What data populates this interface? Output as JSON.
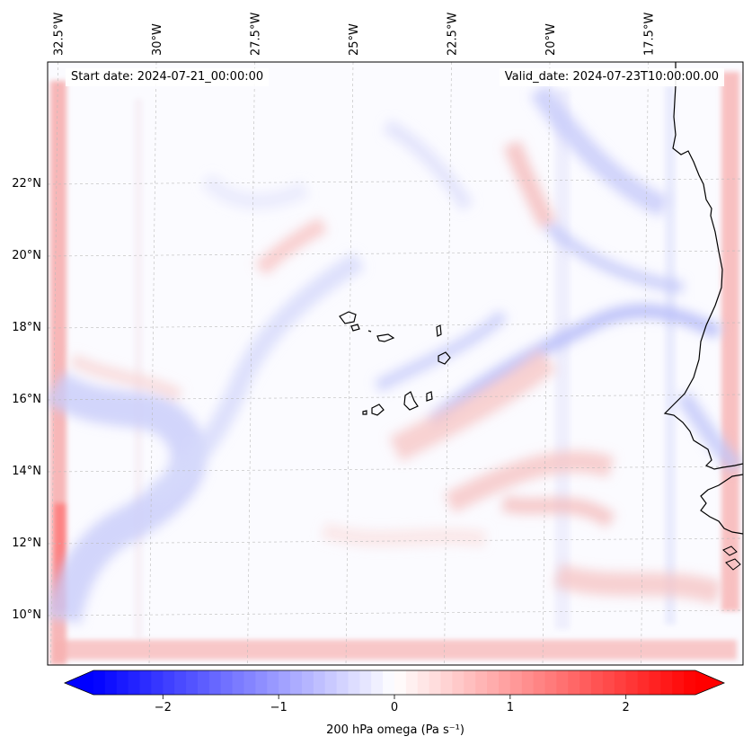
{
  "start_date": "Start date: 2024-07-21_00:00:00",
  "valid_date": "Valid_date: 2024-07-23T10:00:00.00",
  "lon_labels": [
    {
      "label": "32.5°W",
      "lon": -32.5
    },
    {
      "label": "30°W",
      "lon": -30.0
    },
    {
      "label": "27.5°W",
      "lon": -27.5
    },
    {
      "label": "25°W",
      "lon": -25.0
    },
    {
      "label": "22.5°W",
      "lon": -22.5
    },
    {
      "label": "20°W",
      "lon": -20.0
    },
    {
      "label": "17.5°W",
      "lon": -17.5
    }
  ],
  "lat_labels": [
    {
      "label": "22°N",
      "lat": 22
    },
    {
      "label": "20°N",
      "lat": 20
    },
    {
      "label": "18°N",
      "lat": 18
    },
    {
      "label": "16°N",
      "lat": 16
    },
    {
      "label": "14°N",
      "lat": 14
    },
    {
      "label": "12°N",
      "lat": 12
    },
    {
      "label": "10°N",
      "lat": 10
    }
  ],
  "colorbar": {
    "title": "200 hPa omega (Pa s⁻¹)",
    "min": -2.6,
    "max": 2.6,
    "ticks": [
      {
        "label": "−2",
        "value": -2
      },
      {
        "label": "−1",
        "value": -1
      },
      {
        "label": "0",
        "value": 0
      },
      {
        "label": "1",
        "value": 1
      },
      {
        "label": "2",
        "value": 2
      }
    ],
    "cmap": "bwr",
    "color_low": "#0000ff",
    "color_mid": "#ffffff",
    "color_high": "#ff0000"
  }
}
